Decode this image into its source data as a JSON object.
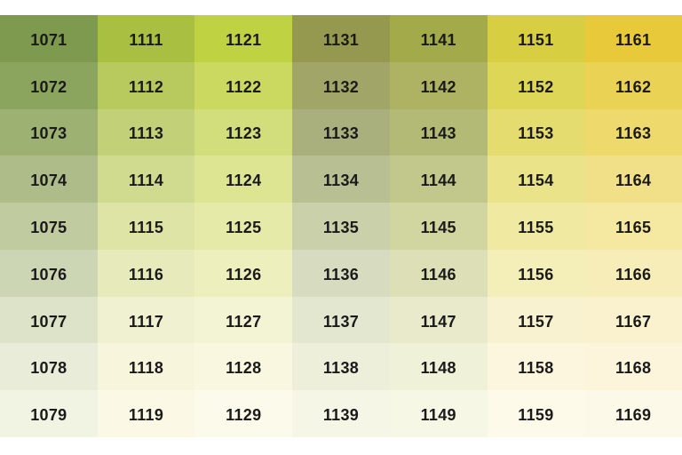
{
  "page": {
    "background_color": "#ffffff",
    "label_text_color": "#1a1a1a"
  },
  "chart_data": {
    "type": "table",
    "title": "",
    "description": "Color swatch chart: 7 columns by 9 rows of paint color codes on their own color backgrounds, fading from saturated tones (top) to near-white tints (bottom)",
    "rows": 9,
    "cols": 7,
    "columns": [
      {
        "codes": [
          "1071",
          "1072",
          "1073",
          "1074",
          "1075",
          "1076",
          "1077",
          "1078",
          "1079"
        ],
        "colors": [
          "#7d9a4e",
          "#8ba55e",
          "#9db173",
          "#aebc8a",
          "#c0cba0",
          "#cdd6b4",
          "#dde3c9",
          "#e8ecd9",
          "#f1f3e3"
        ]
      },
      {
        "codes": [
          "1111",
          "1112",
          "1113",
          "1114",
          "1115",
          "1116",
          "1117",
          "1118",
          "1119"
        ],
        "colors": [
          "#a9bf41",
          "#b8c95e",
          "#c2d177",
          "#d0db90",
          "#dde4a5",
          "#e7ebbb",
          "#f0f1d1",
          "#f8f5dd",
          "#fbf9e6"
        ]
      },
      {
        "codes": [
          "1121",
          "1122",
          "1123",
          "1124",
          "1125",
          "1126",
          "1127",
          "1128",
          "1129"
        ],
        "colors": [
          "#bfd241",
          "#cbd960",
          "#d2dd7b",
          "#dde593",
          "#e6eaa8",
          "#edf0bd",
          "#f3f4d3",
          "#f9f7e0",
          "#fcfaea"
        ]
      },
      {
        "codes": [
          "1131",
          "1132",
          "1133",
          "1134",
          "1135",
          "1136",
          "1137",
          "1138",
          "1139"
        ],
        "colors": [
          "#94994f",
          "#a1a567",
          "#a9b07e",
          "#b8bf93",
          "#c9d0aa",
          "#d7dcc1",
          "#e4e7d0",
          "#edefdb",
          "#f5f6e6"
        ]
      },
      {
        "codes": [
          "1141",
          "1142",
          "1143",
          "1144",
          "1145",
          "1146",
          "1147",
          "1148",
          "1149"
        ],
        "colors": [
          "#a2aa4a",
          "#aeb363",
          "#b3ba76",
          "#c2c78b",
          "#d1d5a0",
          "#dde0b7",
          "#e8eacb",
          "#f0f1d9",
          "#f6f7e5"
        ]
      },
      {
        "codes": [
          "1151",
          "1152",
          "1153",
          "1154",
          "1155",
          "1156",
          "1157",
          "1158",
          "1159"
        ],
        "colors": [
          "#d7ce42",
          "#ded657",
          "#e4dc6e",
          "#ebe389",
          "#f0e9a1",
          "#f4eeb9",
          "#f8f2d0",
          "#fbf6dd",
          "#fdfae9"
        ]
      },
      {
        "codes": [
          "1161",
          "1162",
          "1163",
          "1164",
          "1165",
          "1166",
          "1167",
          "1168",
          "1169"
        ],
        "colors": [
          "#e7c93a",
          "#e9d254",
          "#edd96c",
          "#f2e089",
          "#f5e8a1",
          "#f7edb8",
          "#faf2cf",
          "#fcf5db",
          "#fdf9e8"
        ]
      }
    ]
  }
}
